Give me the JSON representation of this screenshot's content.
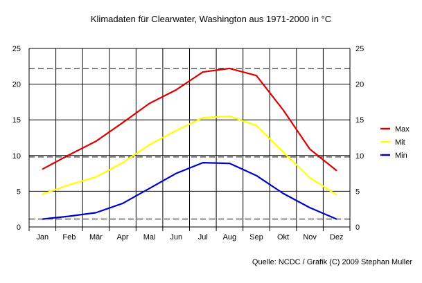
{
  "chart_data": {
    "type": "line",
    "title": "Klimadaten für Clearwater, Washington aus 1971-2000 in °C",
    "categories": [
      "Jan",
      "Feb",
      "Mär",
      "Apr",
      "Mai",
      "Jun",
      "Jul",
      "Aug",
      "Sep",
      "Okt",
      "Nov",
      "Dez"
    ],
    "ylim": [
      0,
      25
    ],
    "yticks": [
      0,
      5,
      10,
      15,
      20,
      25
    ],
    "grid": true,
    "dashed_reference_lines": [
      22.2,
      9.8,
      1.1
    ],
    "legend_position": "right",
    "series": [
      {
        "name": "Max",
        "color": "#dd0000",
        "values": [
          8.1,
          10.1,
          12.0,
          14.6,
          17.3,
          19.2,
          21.7,
          22.2,
          21.2,
          16.4,
          10.9,
          7.9
        ]
      },
      {
        "name": "Mit",
        "color": "#ffff00",
        "values": [
          4.6,
          5.9,
          7.0,
          9.0,
          11.5,
          13.5,
          15.3,
          15.5,
          14.2,
          10.5,
          6.9,
          4.5
        ]
      },
      {
        "name": "Min",
        "color": "#0000cc",
        "values": [
          1.1,
          1.5,
          2.0,
          3.3,
          5.4,
          7.5,
          9.0,
          8.9,
          7.2,
          4.7,
          2.7,
          1.1
        ]
      }
    ]
  },
  "source": "Quelle: NCDC / Grafik (C) 2009 Stephan Muller"
}
